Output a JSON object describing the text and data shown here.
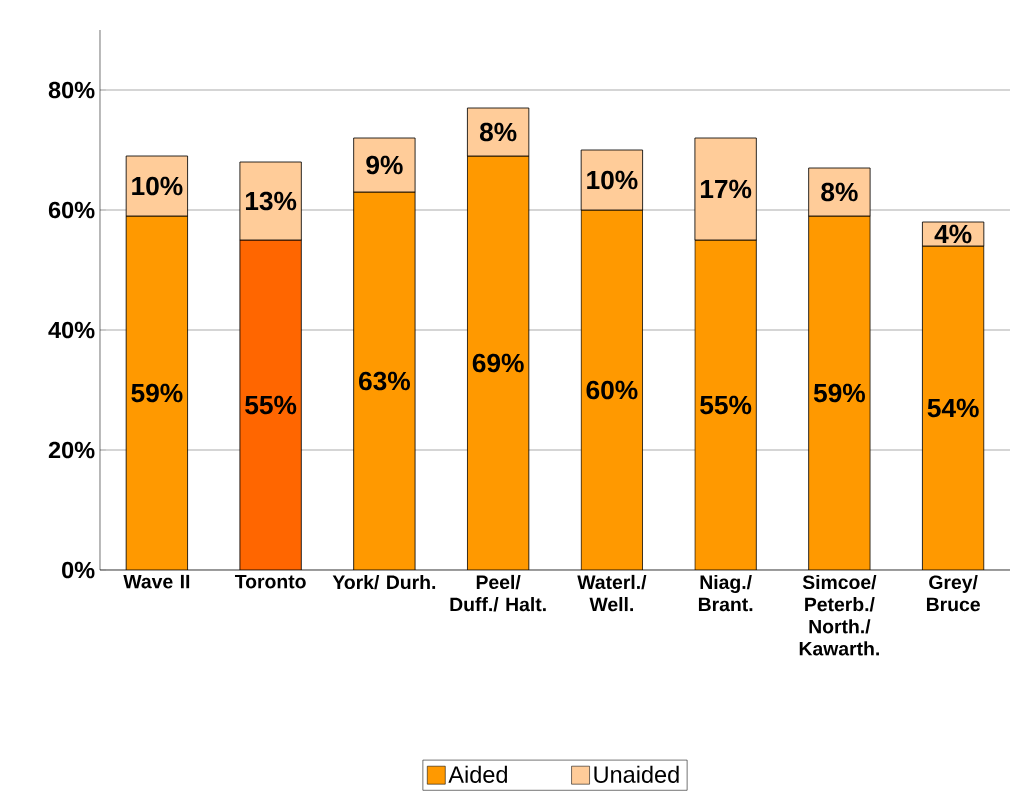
{
  "chart_data": {
    "type": "bar",
    "stacked": true,
    "categories": [
      "Wave II",
      "Toronto",
      "York/ Durh.",
      "Peel/ Duff./ Halt.",
      "Waterl./ Well.",
      "Niag./ Brant.",
      "Simcoe/ Peterb./ North./ Kawarth.",
      "Grey/ Bruce"
    ],
    "series": [
      {
        "name": "Aided",
        "color": "#ff9900",
        "colors": [
          "#ff9900",
          "#ff6600",
          "#ff9900",
          "#ff9900",
          "#ff9900",
          "#ff9900",
          "#ff9900",
          "#ff9900"
        ],
        "values": [
          59,
          55,
          63,
          69,
          60,
          55,
          59,
          54
        ],
        "value_labels": [
          "59%",
          "55%",
          "63%",
          "69%",
          "60%",
          "55%",
          "59%",
          "54%"
        ]
      },
      {
        "name": "Unaided",
        "color": "#ffcc99",
        "values": [
          10,
          13,
          9,
          8,
          10,
          17,
          8,
          4
        ],
        "value_labels": [
          "10%",
          "13%",
          "9%",
          "8%",
          "10%",
          "17%",
          "8%",
          "4%"
        ]
      }
    ],
    "ylim": [
      0,
      90
    ],
    "yticks": [
      {
        "value": 0,
        "label": "0%"
      },
      {
        "value": 20,
        "label": "20%"
      },
      {
        "value": 40,
        "label": "40%"
      },
      {
        "value": 60,
        "label": "60%"
      },
      {
        "value": 80,
        "label": "80%"
      }
    ],
    "grid": "y",
    "legend": "bottom"
  }
}
